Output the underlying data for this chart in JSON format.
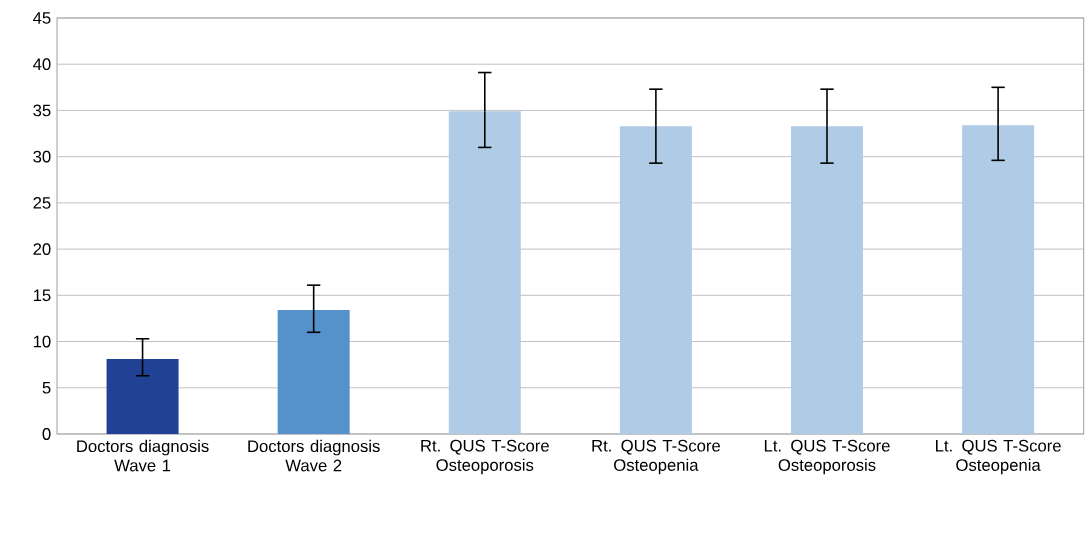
{
  "chart_data": {
    "type": "bar",
    "categories": [
      "Doctors diagnosis Wave 1",
      "Doctors diagnosis Wave 2",
      "Rt. QUS T-Score Osteoporosis",
      "Rt. QUS T-Score Osteopenia",
      "Lt. QUS T-Score Osteoporosis",
      "Lt. QUS T-Score Osteopenia"
    ],
    "values": [
      8.1,
      13.4,
      34.9,
      33.3,
      33.3,
      33.4
    ],
    "colors": [
      "#214294",
      "#5592cc",
      "#b0cbe6",
      "#b0cbe6",
      "#b0cbe6",
      "#b0cbe6"
    ],
    "errors": [
      [
        6.3,
        10.3
      ],
      [
        11.0,
        16.1
      ],
      [
        31.0,
        39.1
      ],
      [
        29.3,
        37.3
      ],
      [
        29.3,
        37.3
      ],
      [
        29.6,
        37.5
      ]
    ],
    "ylim": [
      0,
      45
    ],
    "yticks": [
      0,
      5,
      10,
      15,
      20,
      25,
      30,
      35,
      40,
      45
    ],
    "grid": "y"
  }
}
